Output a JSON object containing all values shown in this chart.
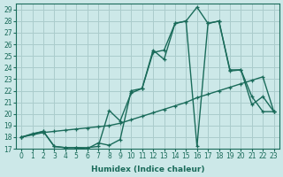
{
  "xlabel": "Humidex (Indice chaleur)",
  "bg_color": "#cce8e8",
  "grid_color": "#aacccc",
  "line_color": "#1a6b5a",
  "xlim": [
    -0.5,
    23.5
  ],
  "ylim": [
    17,
    29.5
  ],
  "xticks": [
    0,
    1,
    2,
    3,
    4,
    5,
    6,
    7,
    8,
    9,
    10,
    11,
    12,
    13,
    14,
    15,
    16,
    17,
    18,
    19,
    20,
    21,
    22,
    23
  ],
  "yticks": [
    17,
    18,
    19,
    20,
    21,
    22,
    23,
    24,
    25,
    26,
    27,
    28,
    29
  ],
  "line_straight_x": [
    0,
    1,
    2,
    3,
    4,
    5,
    6,
    7,
    8,
    9,
    10,
    11,
    12,
    13,
    14,
    15,
    16,
    17,
    18,
    19,
    20,
    21,
    22,
    23
  ],
  "line_straight_y": [
    18.0,
    18.2,
    18.4,
    18.5,
    18.6,
    18.7,
    18.8,
    18.9,
    19.0,
    19.2,
    19.5,
    19.8,
    20.1,
    20.4,
    20.7,
    21.0,
    21.4,
    21.7,
    22.0,
    22.3,
    22.6,
    22.9,
    23.2,
    20.2
  ],
  "line_peak_x": [
    0,
    2,
    3,
    4,
    5,
    6,
    7,
    8,
    9,
    10,
    11,
    12,
    13,
    14,
    15,
    16,
    17,
    18,
    19,
    20,
    21,
    22,
    23
  ],
  "line_peak_y": [
    18.0,
    18.5,
    17.2,
    17.1,
    17.1,
    17.0,
    17.5,
    17.3,
    17.8,
    22.0,
    22.2,
    25.3,
    25.5,
    27.8,
    28.0,
    29.2,
    27.8,
    28.0,
    23.8,
    23.8,
    20.8,
    21.5,
    20.2
  ],
  "line_mid_x": [
    0,
    1,
    2,
    3,
    4,
    5,
    6,
    7,
    8,
    9,
    10,
    11,
    12,
    13,
    14,
    15,
    16,
    17,
    18,
    19,
    20,
    21,
    22,
    23
  ],
  "line_mid_y": [
    18.0,
    18.3,
    18.5,
    17.2,
    17.1,
    17.1,
    17.1,
    17.2,
    20.3,
    19.4,
    21.8,
    22.2,
    25.5,
    24.7,
    27.8,
    28.0,
    17.2,
    27.8,
    28.0,
    23.7,
    23.8,
    21.5,
    20.2,
    20.2
  ]
}
